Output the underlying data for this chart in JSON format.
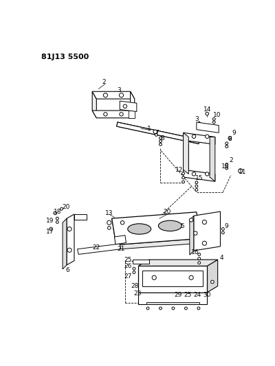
{
  "title": "81J13 5500",
  "bg": "#ffffff",
  "lc": "#000000",
  "figsize": [
    4.0,
    5.33
  ],
  "dpi": 100
}
